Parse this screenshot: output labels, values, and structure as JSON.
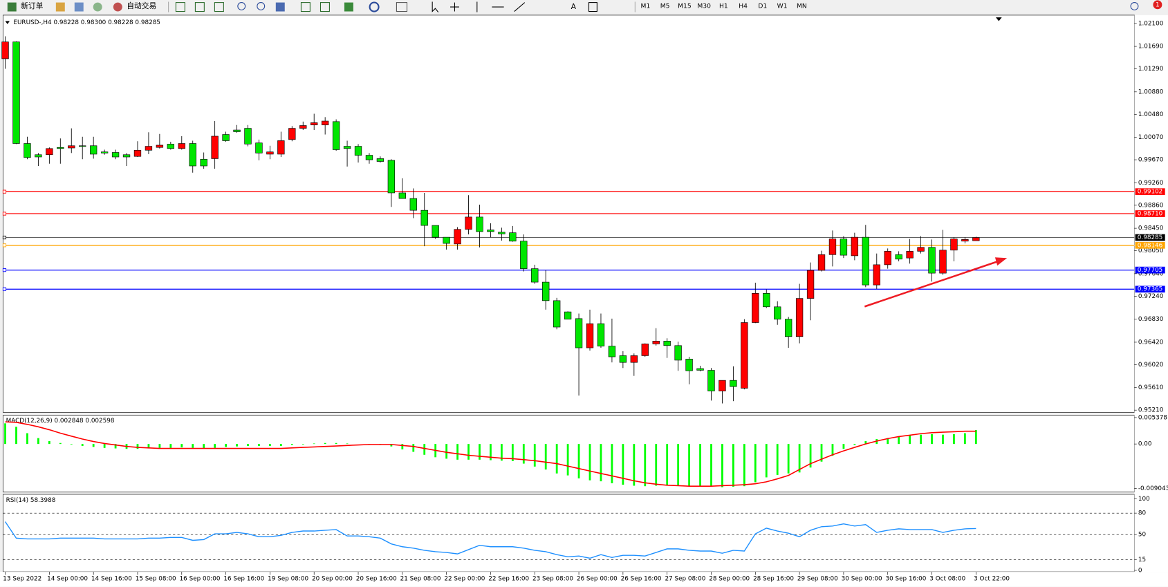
{
  "toolbar": {
    "new_order": "新订单",
    "auto_trading": "自动交易",
    "text_tool": "A",
    "timeframes": [
      "M1",
      "M5",
      "M15",
      "M30",
      "H1",
      "H4",
      "D1",
      "W1",
      "MN"
    ],
    "notifications": "1"
  },
  "chart_data": [
    {
      "type": "candlestick",
      "title": "EURUSD-,H4  0.98228 0.98300 0.98228 0.98285",
      "up_color": "#ff0000",
      "down_color": "#00e600",
      "ylim": [
        0.9521,
        1.021
      ],
      "yticks": [
        {
          "value": 1.021,
          "label": "1.02100"
        },
        {
          "value": 1.0169,
          "label": "1.01690"
        },
        {
          "value": 1.0129,
          "label": "1.01290"
        },
        {
          "value": 1.0088,
          "label": "1.00880"
        },
        {
          "value": 1.0048,
          "label": "1.00480"
        },
        {
          "value": 1.0007,
          "label": "1.00070"
        },
        {
          "value": 0.9967,
          "label": "0.99670"
        },
        {
          "value": 0.9926,
          "label": "0.99260"
        },
        {
          "value": 0.9886,
          "label": "0.98860"
        },
        {
          "value": 0.9845,
          "label": "0.98450"
        },
        {
          "value": 0.9805,
          "label": "0.98050"
        },
        {
          "value": 0.9764,
          "label": "0.97640"
        },
        {
          "value": 0.9724,
          "label": "0.97240"
        },
        {
          "value": 0.9683,
          "label": "0.96830"
        },
        {
          "value": 0.9642,
          "label": "0.96420"
        },
        {
          "value": 0.9602,
          "label": "0.96020"
        },
        {
          "value": 0.9561,
          "label": "0.95610"
        },
        {
          "value": 0.9521,
          "label": "0.95210"
        }
      ],
      "levels": [
        {
          "value": 0.99102,
          "label": "0.99102",
          "color": "#ff0000"
        },
        {
          "value": 0.9871,
          "label": "0.98710",
          "color": "#ff0000"
        },
        {
          "value": 0.98285,
          "label": "0.98285",
          "color": "#000000"
        },
        {
          "value": 0.98146,
          "label": "0.98146",
          "color": "#ffa500"
        },
        {
          "value": 0.97705,
          "label": "0.97705",
          "color": "#0000ff"
        },
        {
          "value": 0.97365,
          "label": "0.97365",
          "color": "#0000ff"
        }
      ],
      "categories": [
        "13 Sep 2022",
        null,
        null,
        null,
        "14 Sep 00:00",
        null,
        null,
        null,
        "14 Sep 16:00",
        null,
        null,
        null,
        "15 Sep 08:00",
        null,
        null,
        null,
        "16 Sep 00:00",
        null,
        null,
        null,
        "16 Sep 16:00",
        null,
        null,
        null,
        "19 Sep 08:00",
        null,
        null,
        null,
        "20 Sep 00:00",
        null,
        null,
        null,
        "20 Sep 16:00",
        null,
        null,
        null,
        "21 Sep 08:00",
        null,
        null,
        null,
        "22 Sep 00:00",
        null,
        null,
        null,
        "22 Sep 16:00",
        null,
        null,
        null,
        "23 Sep 08:00",
        null,
        null,
        null,
        "26 Sep 00:00",
        null,
        null,
        null,
        "26 Sep 16:00",
        null,
        null,
        null,
        "27 Sep 08:00",
        null,
        null,
        null,
        "28 Sep 00:00",
        null,
        null,
        null,
        "28 Sep 16:00",
        null,
        null,
        null,
        "29 Sep 08:00",
        null,
        null,
        null,
        "30 Sep 00:00",
        null,
        null,
        null,
        "30 Sep 16:00",
        null,
        null,
        null,
        "3 Oct 08:00",
        null,
        null,
        null,
        "3 Oct 22:00"
      ],
      "open": [
        1.0147,
        1.0177,
        0.9996,
        0.9976,
        0.9976,
        0.9989,
        0.9988,
        0.9992,
        0.9992,
        0.9981,
        0.998,
        0.9976,
        0.9973,
        0.9984,
        0.9989,
        0.9995,
        0.9987,
        0.9996,
        0.9968,
        0.9969,
        1.0012,
        1.002,
        1.0023,
        0.9997,
        0.9977,
        0.9977,
        1.0003,
        1.0023,
        1.0029,
        1.0029,
        1.0035,
        0.9991,
        0.9991,
        0.9975,
        0.9969,
        0.9966,
        0.9908,
        0.9898,
        0.9877,
        0.985,
        0.9829,
        0.9817,
        0.9843,
        0.9865,
        0.9842,
        0.9838,
        0.9837,
        0.9822,
        0.9773,
        0.9749,
        0.9716,
        0.9696,
        0.9684,
        0.9632,
        0.9675,
        0.9635,
        0.9618,
        0.9606,
        0.9618,
        0.9639,
        0.9644,
        0.9636,
        0.9612,
        0.9595,
        0.9592,
        0.9555,
        0.9574,
        0.956,
        0.9677,
        0.9729,
        0.9705,
        0.9683,
        0.9652,
        0.972,
        0.977,
        0.9798,
        0.9826,
        0.9796,
        0.9829,
        0.9744,
        0.978,
        0.9798,
        0.9792,
        0.9804,
        0.9811,
        0.9765,
        0.9806,
        0.9822,
        0.98228
      ],
      "high": [
        1.0187,
        1.0178,
        1.0008,
        0.9979,
        0.9989,
        1.0005,
        1.0023,
        1.0008,
        1.0008,
        0.9985,
        0.9985,
        0.9979,
        1.0,
        1.0016,
        1.0013,
        0.9999,
        1.0009,
        1.0001,
        0.998,
        1.0036,
        1.0017,
        1.0029,
        1.0029,
        1.0003,
        0.9992,
        1.0017,
        1.0027,
        1.0035,
        1.0049,
        1.0043,
        1.0039,
        1.0001,
        0.9995,
        0.9979,
        0.9973,
        0.9968,
        0.9934,
        0.9916,
        0.9908,
        0.985,
        0.9829,
        0.9847,
        0.9904,
        0.9887,
        0.9854,
        0.9846,
        0.9849,
        0.9834,
        0.978,
        0.977,
        0.9721,
        0.9697,
        0.9693,
        0.97,
        0.9693,
        0.9684,
        0.9626,
        0.9622,
        0.964,
        0.9667,
        0.9649,
        0.9643,
        0.9616,
        0.96,
        0.9596,
        0.9574,
        0.9599,
        0.9683,
        0.9748,
        0.9736,
        0.9715,
        0.9687,
        0.9746,
        0.9784,
        0.9805,
        0.9841,
        0.9831,
        0.9837,
        0.9851,
        0.98,
        0.9809,
        0.9804,
        0.9826,
        0.9831,
        0.9825,
        0.9842,
        0.9829,
        0.9829,
        0.983
      ],
      "low": [
        1.0129,
        0.9995,
        0.9968,
        0.9956,
        0.996,
        0.996,
        0.9979,
        0.9968,
        0.9969,
        0.9976,
        0.9968,
        0.9956,
        0.9972,
        0.9977,
        0.9987,
        0.9985,
        0.9985,
        0.9944,
        0.9951,
        0.9951,
        0.9999,
        1.0015,
        0.9991,
        0.9966,
        0.9968,
        0.9972,
        1.0,
        1.002,
        1.002,
        1.0012,
        0.9983,
        0.9955,
        0.9962,
        0.996,
        0.9962,
        0.9883,
        0.9898,
        0.9863,
        0.9813,
        0.9826,
        0.9807,
        0.9807,
        0.9834,
        0.9811,
        0.9829,
        0.9823,
        0.9821,
        0.9768,
        0.9746,
        0.97,
        0.9665,
        0.9683,
        0.9547,
        0.9627,
        0.9632,
        0.9606,
        0.9596,
        0.9582,
        0.9616,
        0.9636,
        0.9614,
        0.9591,
        0.9567,
        0.959,
        0.9538,
        0.9533,
        0.9537,
        0.9558,
        0.9676,
        0.9703,
        0.9673,
        0.9632,
        0.964,
        0.9681,
        0.9768,
        0.9777,
        0.9792,
        0.9788,
        0.974,
        0.9737,
        0.9773,
        0.9786,
        0.9782,
        0.98,
        0.975,
        0.9762,
        0.9786,
        0.9818,
        0.98228
      ],
      "close": [
        1.0177,
        0.9996,
        0.9971,
        0.9972,
        0.9987,
        0.9987,
        0.9992,
        0.9991,
        0.9977,
        0.9979,
        0.9972,
        0.9972,
        0.9984,
        0.9991,
        0.9993,
        0.9987,
        0.9996,
        0.9956,
        0.9956,
        1.0009,
        1.0001,
        1.0017,
        0.9995,
        0.9979,
        0.9981,
        1.0001,
        1.0023,
        1.0028,
        1.0033,
        1.0036,
        0.9985,
        0.9987,
        0.9975,
        0.9967,
        0.9964,
        0.9908,
        0.9898,
        0.9877,
        0.985,
        0.9829,
        0.9818,
        0.9843,
        0.9865,
        0.9839,
        0.9839,
        0.9835,
        0.9822,
        0.9773,
        0.9749,
        0.9716,
        0.9669,
        0.9683,
        0.9632,
        0.9675,
        0.9635,
        0.9616,
        0.9606,
        0.9618,
        0.9639,
        0.9644,
        0.9636,
        0.961,
        0.9591,
        0.9592,
        0.9555,
        0.9574,
        0.9563,
        0.9677,
        0.9729,
        0.9705,
        0.9683,
        0.9652,
        0.972,
        0.977,
        0.9798,
        0.9826,
        0.9797,
        0.9829,
        0.9744,
        0.978,
        0.9804,
        0.979,
        0.9804,
        0.9811,
        0.9765,
        0.9806,
        0.9826,
        0.9825,
        0.98285
      ]
    },
    {
      "type": "macd",
      "title": "MACD(12,26,9) 0.002848 0.002598",
      "ylim": [
        -0.009043,
        0.005378
      ],
      "yticks": [
        0.005378,
        {
          "value": 0,
          "label": "0.00"
        },
        -0.009043
      ],
      "series": [
        {
          "kind": "bar",
          "color": "#00ff00",
          "values": [
            0.0042,
            0.0035,
            0.0022,
            0.0012,
            0.0006,
            0.0002,
            -0.0001,
            -0.0004,
            -0.0006,
            -0.0008,
            -0.0009,
            -0.001,
            -0.001,
            -0.0009,
            -0.0008,
            -0.0008,
            -0.0007,
            -0.0008,
            -0.0009,
            -0.0008,
            -0.0006,
            -0.0005,
            -0.0004,
            -0.0004,
            -0.0004,
            -0.0004,
            -0.0002,
            -0.0001,
            0.0001,
            0.0002,
            0.0002,
            0.0001,
            0.0,
            -0.0001,
            -0.0002,
            -0.0005,
            -0.0011,
            -0.0016,
            -0.0022,
            -0.0027,
            -0.003,
            -0.0032,
            -0.0032,
            -0.0032,
            -0.0033,
            -0.0034,
            -0.0035,
            -0.004,
            -0.0046,
            -0.0052,
            -0.006,
            -0.0064,
            -0.007,
            -0.0074,
            -0.0076,
            -0.008,
            -0.0083,
            -0.0085,
            -0.0086,
            -0.0085,
            -0.0084,
            -0.0084,
            -0.0086,
            -0.0087,
            -0.0087,
            -0.0088,
            -0.0087,
            -0.0086,
            -0.0078,
            -0.0068,
            -0.0063,
            -0.006,
            -0.0058,
            -0.0048,
            -0.0036,
            -0.0024,
            -0.001,
            -0.0002,
            0.0006,
            0.001,
            0.0012,
            0.0015,
            0.0017,
            0.0019,
            0.002,
            0.0019,
            0.002,
            0.0022,
            0.002848
          ]
        },
        {
          "kind": "line",
          "color": "#ff0000",
          "values": [
            0.0045,
            0.0044,
            0.004,
            0.0035,
            0.0029,
            0.0022,
            0.0016,
            0.001,
            0.0005,
            0.0001,
            -0.0002,
            -0.0005,
            -0.0007,
            -0.0008,
            -0.0009,
            -0.0009,
            -0.0009,
            -0.0009,
            -0.0009,
            -0.0009,
            -0.0009,
            -0.0009,
            -0.0009,
            -0.0009,
            -0.0009,
            -0.0009,
            -0.0008,
            -0.0007,
            -0.0006,
            -0.0005,
            -0.0004,
            -0.0003,
            -0.0002,
            -0.0001,
            -0.0001,
            -0.0001,
            -0.0003,
            -0.0005,
            -0.0009,
            -0.0013,
            -0.0017,
            -0.002,
            -0.0023,
            -0.0025,
            -0.0027,
            -0.0029,
            -0.003,
            -0.0032,
            -0.0034,
            -0.0037,
            -0.004,
            -0.0045,
            -0.005,
            -0.0055,
            -0.006,
            -0.0065,
            -0.007,
            -0.0075,
            -0.0079,
            -0.0082,
            -0.0084,
            -0.0085,
            -0.0086,
            -0.0086,
            -0.0086,
            -0.0085,
            -0.0084,
            -0.0083,
            -0.0081,
            -0.0077,
            -0.0071,
            -0.0064,
            -0.0052,
            -0.004,
            -0.0031,
            -0.0022,
            -0.0014,
            -0.0007,
            0.0,
            0.0006,
            0.0011,
            0.0015,
            0.0018,
            0.0021,
            0.0023,
            0.0024,
            0.0025,
            0.0026,
            0.002598
          ]
        }
      ]
    },
    {
      "type": "line",
      "title": "RSI(14) 58.3988",
      "color": "#1e90ff",
      "ylim": [
        0,
        100
      ],
      "yticks": [
        0,
        15,
        50,
        80,
        100
      ],
      "levels": [
        15,
        50,
        80
      ],
      "values": [
        68,
        45,
        44,
        44,
        44,
        45,
        45,
        45,
        45,
        44,
        44,
        44,
        44,
        45,
        45,
        46,
        46,
        42,
        43,
        51,
        51,
        53,
        51,
        47,
        47,
        49,
        53,
        55,
        55,
        56,
        57,
        48,
        48,
        47,
        45,
        37,
        33,
        31,
        28,
        26,
        25,
        23,
        29,
        35,
        33,
        33,
        33,
        31,
        28,
        26,
        22,
        19,
        20,
        17,
        22,
        18,
        21,
        21,
        20,
        25,
        30,
        30,
        28,
        27,
        27,
        24,
        28,
        27,
        51,
        59,
        55,
        52,
        47,
        56,
        61,
        62,
        65,
        62,
        64,
        53,
        56,
        58,
        57,
        57,
        57,
        53,
        56,
        58,
        58.3988
      ]
    }
  ]
}
